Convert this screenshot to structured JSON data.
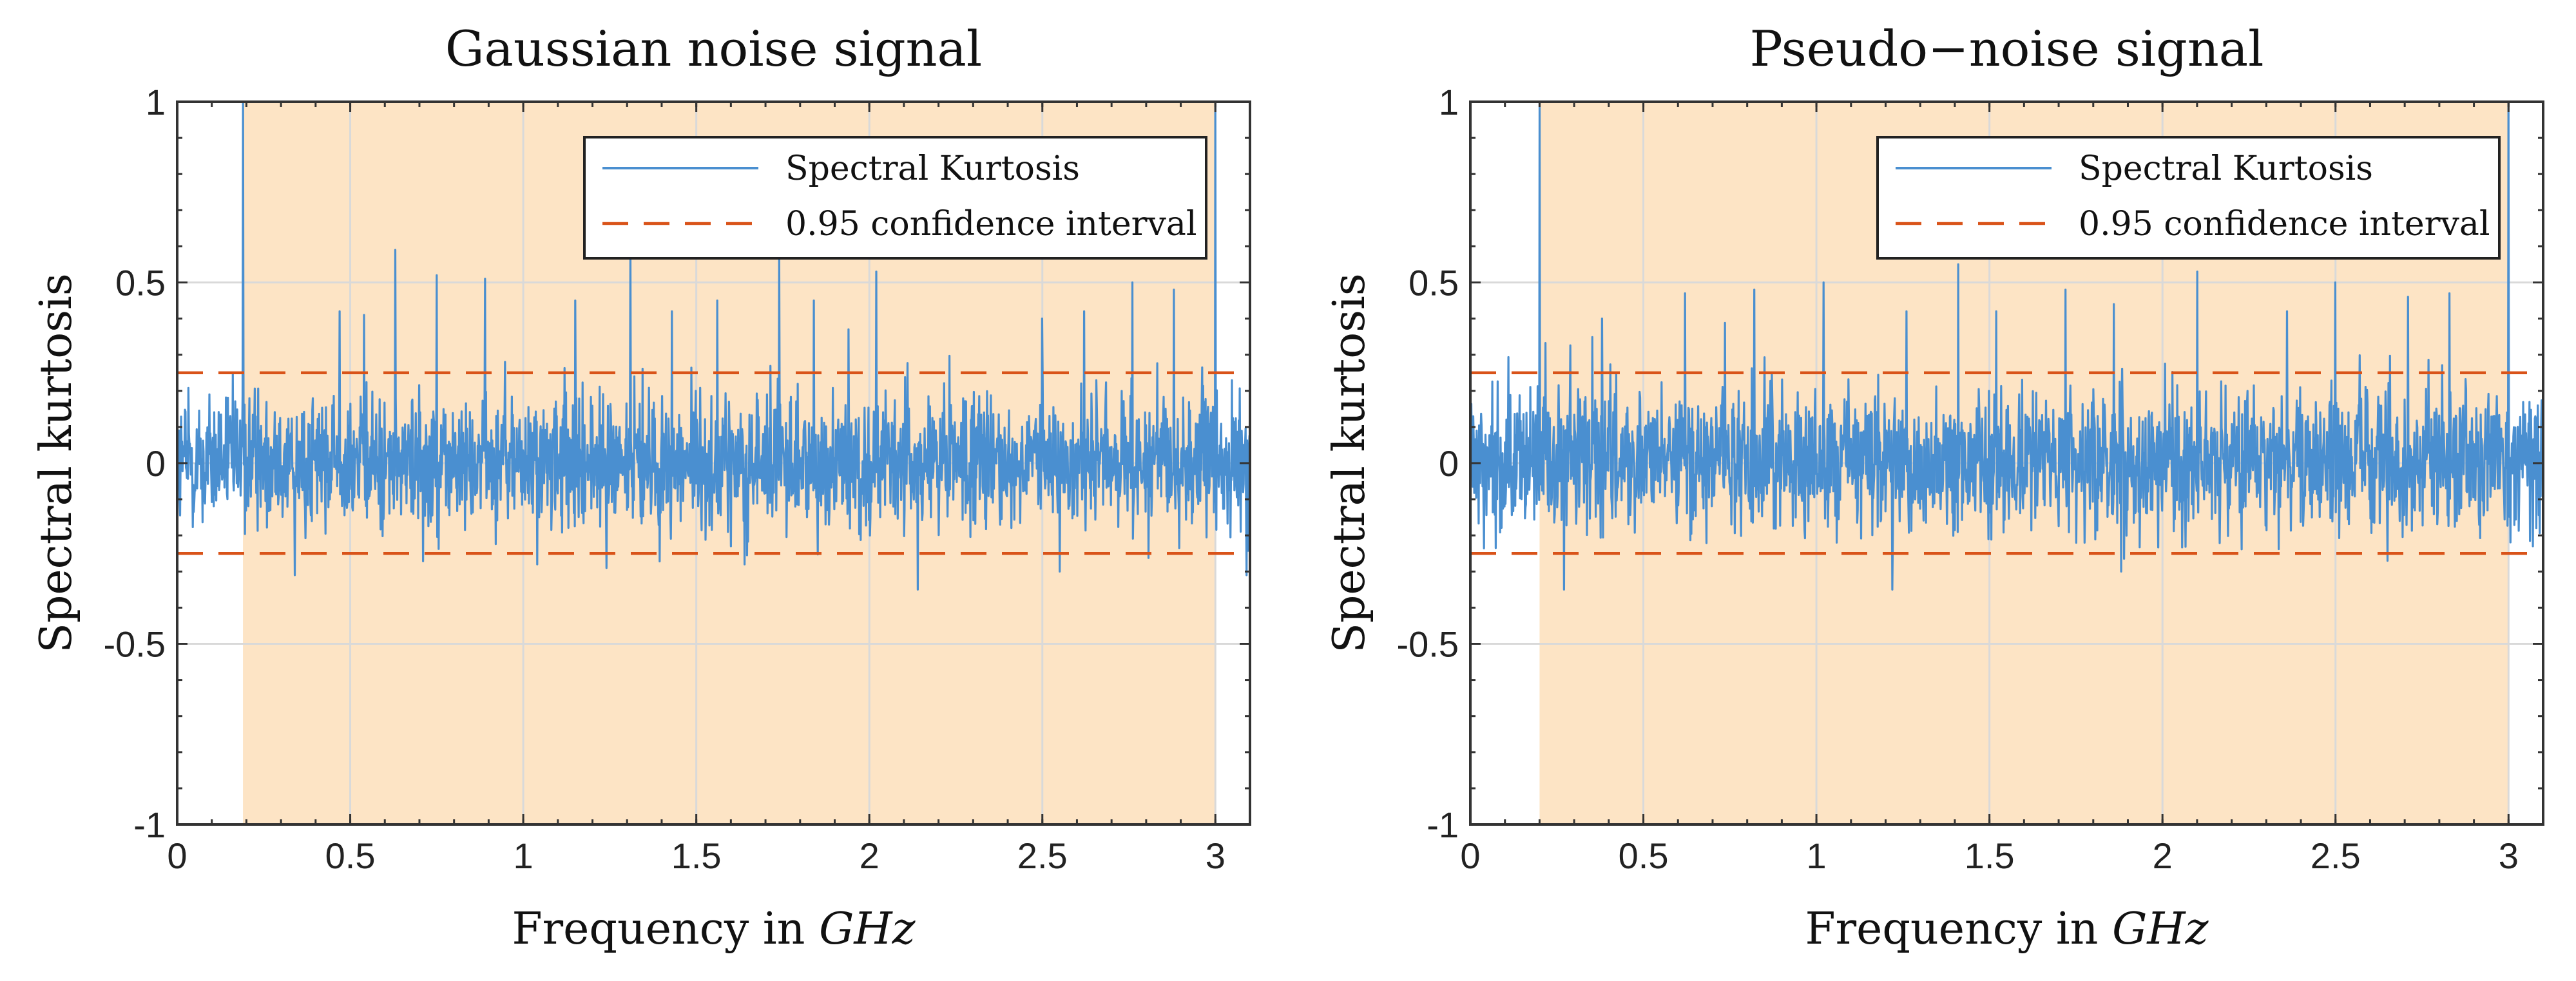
{
  "colors": {
    "signal": "#4a8fd0",
    "confidence": "#d95319",
    "band": "#fde4c5",
    "grid": "#d9d9d9",
    "axis": "#333333"
  },
  "chart_data": [
    {
      "type": "line",
      "title": "Gaussian noise signal",
      "xlabel_text": "Frequency in ",
      "xlabel_unit": "GHz",
      "ylabel": "Spectral kurtosis",
      "xlim": [
        0,
        3.1
      ],
      "ylim": [
        -1,
        1
      ],
      "xticks": [
        0,
        0.5,
        1,
        1.5,
        2,
        2.5,
        3
      ],
      "xtick_labels": [
        "0",
        "0.5",
        "1",
        "1.5",
        "2",
        "2.5",
        "3"
      ],
      "yticks": [
        -1,
        -0.5,
        0,
        0.5,
        1
      ],
      "ytick_labels": [
        "-1",
        "-0.5",
        "0",
        "0.5",
        "1"
      ],
      "grid": true,
      "legend_position": "top-right",
      "shaded_band": [
        0.19,
        3.0
      ],
      "series": [
        {
          "name": "Spectral Kurtosis",
          "noise_std": 0.09,
          "peaks": [
            [
              0.19,
              1.0
            ],
            [
              0.47,
              0.42
            ],
            [
              0.54,
              0.41
            ],
            [
              0.63,
              0.59
            ],
            [
              0.75,
              0.52
            ],
            [
              0.89,
              0.51
            ],
            [
              1.15,
              0.45
            ],
            [
              1.31,
              0.6
            ],
            [
              1.43,
              0.42
            ],
            [
              1.56,
              0.45
            ],
            [
              1.74,
              0.59
            ],
            [
              1.84,
              0.45
            ],
            [
              1.94,
              0.37
            ],
            [
              2.02,
              0.53
            ],
            [
              2.5,
              0.4
            ],
            [
              2.62,
              0.42
            ],
            [
              2.76,
              0.5
            ],
            [
              2.88,
              0.48
            ],
            [
              3.0,
              1.0
            ]
          ],
          "dips": [
            [
              0.34,
              -0.31
            ],
            [
              1.04,
              -0.28
            ],
            [
              1.24,
              -0.29
            ],
            [
              1.64,
              -0.28
            ],
            [
              2.14,
              -0.35
            ],
            [
              2.55,
              -0.3
            ],
            [
              3.09,
              -0.31
            ]
          ]
        },
        {
          "name": "0.95 confidence interval",
          "upper": 0.25,
          "lower": -0.25
        }
      ]
    },
    {
      "type": "line",
      "title": "Pseudo−noise signal",
      "xlabel_text": "Frequency in ",
      "xlabel_unit": "GHz",
      "ylabel": "Spectral kurtosis",
      "xlim": [
        0,
        3.1
      ],
      "ylim": [
        -1,
        1
      ],
      "xticks": [
        0,
        0.5,
        1,
        1.5,
        2,
        2.5,
        3
      ],
      "xtick_labels": [
        "0",
        "0.5",
        "1",
        "1.5",
        "2",
        "2.5",
        "3"
      ],
      "yticks": [
        -1,
        -0.5,
        0,
        0.5,
        1
      ],
      "ytick_labels": [
        "-1",
        "-0.5",
        "0",
        "0.5",
        "1"
      ],
      "grid": true,
      "legend_position": "top-right",
      "shaded_band": [
        0.2,
        3.0
      ],
      "series": [
        {
          "name": "Spectral Kurtosis",
          "noise_std": 0.09,
          "peaks": [
            [
              0.2,
              1.0
            ],
            [
              0.38,
              0.4
            ],
            [
              0.62,
              0.47
            ],
            [
              0.82,
              0.48
            ],
            [
              1.02,
              0.5
            ],
            [
              1.26,
              0.42
            ],
            [
              1.41,
              0.55
            ],
            [
              1.52,
              0.42
            ],
            [
              1.72,
              0.48
            ],
            [
              1.86,
              0.44
            ],
            [
              2.1,
              0.53
            ],
            [
              2.36,
              0.42
            ],
            [
              2.5,
              0.5
            ],
            [
              2.71,
              0.46
            ],
            [
              2.83,
              0.47
            ],
            [
              3.0,
              1.0
            ]
          ],
          "dips": [
            [
              0.27,
              -0.35
            ],
            [
              1.22,
              -0.35
            ],
            [
              1.88,
              -0.3
            ],
            [
              2.65,
              -0.27
            ],
            [
              3.07,
              -0.23
            ]
          ]
        },
        {
          "name": "0.95 confidence interval",
          "upper": 0.25,
          "lower": -0.25
        }
      ]
    }
  ]
}
